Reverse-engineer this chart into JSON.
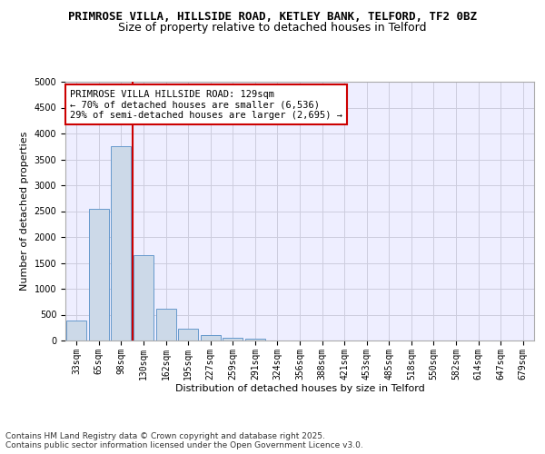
{
  "title1": "PRIMROSE VILLA, HILLSIDE ROAD, KETLEY BANK, TELFORD, TF2 0BZ",
  "title2": "Size of property relative to detached houses in Telford",
  "xlabel": "Distribution of detached houses by size in Telford",
  "ylabel": "Number of detached properties",
  "categories": [
    "33sqm",
    "65sqm",
    "98sqm",
    "130sqm",
    "162sqm",
    "195sqm",
    "227sqm",
    "259sqm",
    "291sqm",
    "324sqm",
    "356sqm",
    "388sqm",
    "421sqm",
    "453sqm",
    "485sqm",
    "518sqm",
    "550sqm",
    "582sqm",
    "614sqm",
    "647sqm",
    "679sqm"
  ],
  "values": [
    380,
    2540,
    3760,
    1650,
    620,
    230,
    100,
    60,
    40,
    0,
    0,
    0,
    0,
    0,
    0,
    0,
    0,
    0,
    0,
    0,
    0
  ],
  "bar_color": "#ccd9e8",
  "bar_edge_color": "#6699cc",
  "vline_x_idx": 3,
  "vline_color": "#cc0000",
  "annotation_text": "PRIMROSE VILLA HILLSIDE ROAD: 129sqm\n← 70% of detached houses are smaller (6,536)\n29% of semi-detached houses are larger (2,695) →",
  "annotation_box_color": "#ffffff",
  "annotation_box_edge": "#cc0000",
  "ylim": [
    0,
    5000
  ],
  "yticks": [
    0,
    500,
    1000,
    1500,
    2000,
    2500,
    3000,
    3500,
    4000,
    4500,
    5000
  ],
  "grid_color": "#ccccdd",
  "background_color": "#eeeeff",
  "footer": "Contains HM Land Registry data © Crown copyright and database right 2025.\nContains public sector information licensed under the Open Government Licence v3.0.",
  "title_fontsize": 9,
  "subtitle_fontsize": 9,
  "axis_label_fontsize": 8,
  "tick_fontsize": 7,
  "annotation_fontsize": 7.5
}
